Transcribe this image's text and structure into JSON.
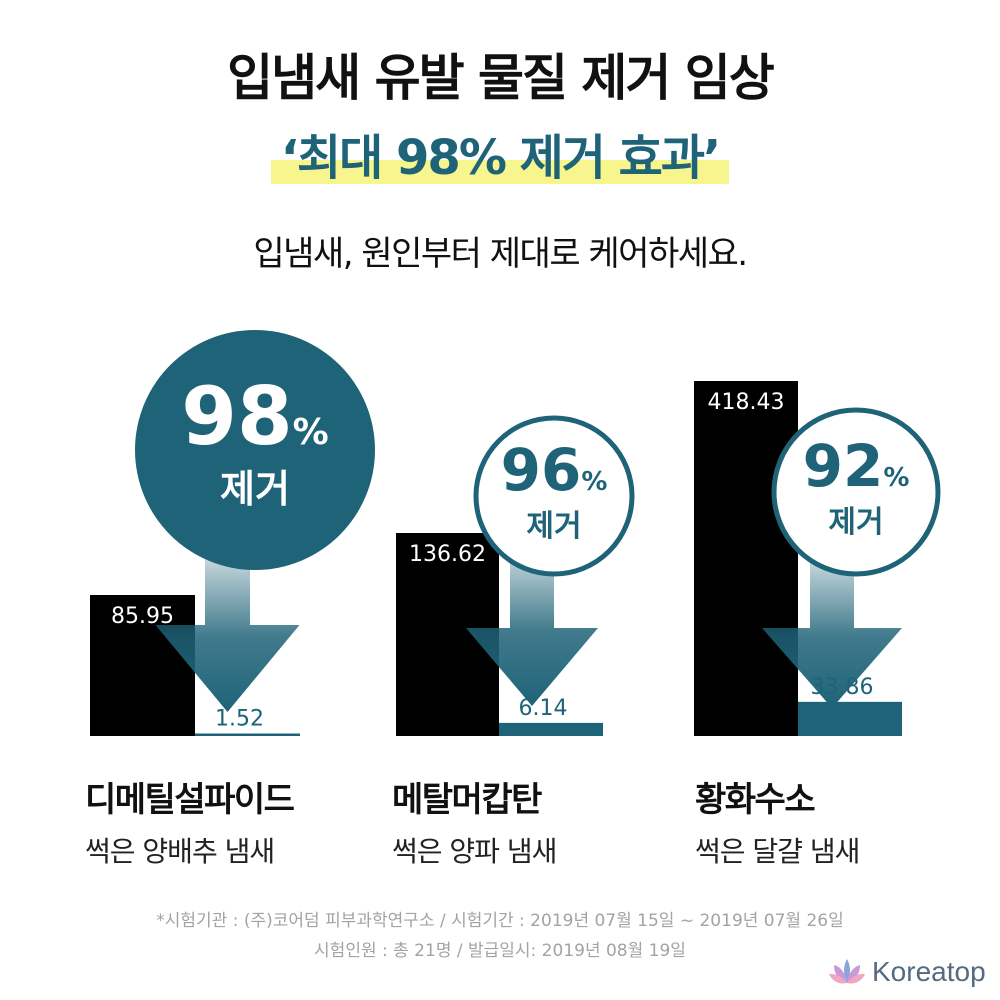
{
  "header": {
    "title": "입냄새 유발 물질 제거 임상",
    "subtitle": "‘최대 98% 제거 효과’",
    "tagline": "입냄새, 원인부터 제대로 케어하세요."
  },
  "chart_data": {
    "type": "bar",
    "categories": [
      "디메틸설파이드",
      "메탈머캅탄",
      "황화수소"
    ],
    "category_descriptions": [
      "썩은 양배추 냄새",
      "썩은 양파 냄새",
      "썩은 달걀 냄새"
    ],
    "series": [
      {
        "values": [
          85.95,
          136.62,
          418.43
        ]
      },
      {
        "values": [
          1.52,
          6.14,
          33.86
        ]
      }
    ],
    "annotations": [
      {
        "value": "98",
        "unit": "%",
        "text": "제거"
      },
      {
        "value": "96",
        "unit": "%",
        "text": "제거"
      },
      {
        "value": "92",
        "unit": "%",
        "text": "제거"
      }
    ],
    "grid": false,
    "colors": {
      "before": "#000000",
      "after": "#1f6378",
      "accent": "#1f6378"
    }
  },
  "footnote": {
    "line1": "*시험기관 : (주)코어덤 피부과학연구소 / 시험기간 : 2019년 07월 15일 ~ 2019년 07월 26일",
    "line2": "시험인원 : 총 21명 / 발급일시: 2019년 08월 19일"
  },
  "brand": {
    "name": "Koreatop",
    "icon": "lotus-icon"
  }
}
